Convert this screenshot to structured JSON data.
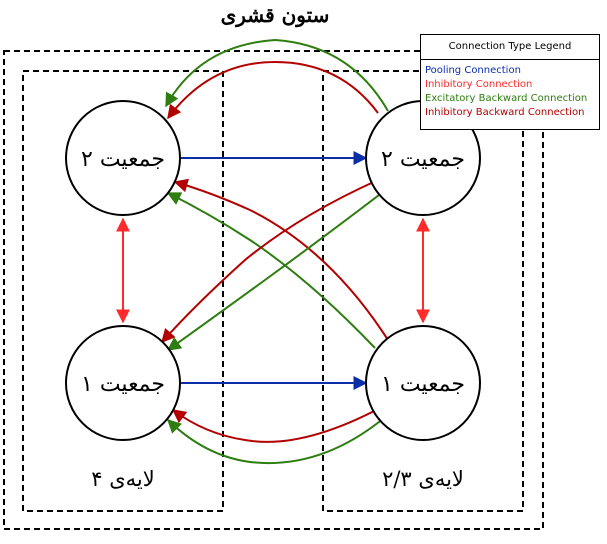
{
  "diagram": {
    "title": "ستون قشری",
    "layer4_label": "لایه‌ی ۴",
    "layer23_label": "لایه‌ی ۲/۳",
    "nodes": {
      "l4_pop2": "جمعیت ۲",
      "l4_pop1": "جمعیت ۱",
      "l23_pop2": "جمعیت ۲",
      "l23_pop1": "جمعیت ۱"
    }
  },
  "legend": {
    "title": "Connection Type Legend",
    "items": [
      {
        "label": "Pooling Connection",
        "color": "#0a2ea8"
      },
      {
        "label": "Inhibitory Connection",
        "color": "#ff2a2a"
      },
      {
        "label": "Excitatory Backward Connection",
        "color": "#2e7d0f"
      },
      {
        "label": "Inhibitory Backward Connection",
        "color": "#b30000"
      }
    ]
  },
  "colors": {
    "pooling": "#0a2ea8",
    "inhibitory": "#ff2a2a",
    "excitatory_backward": "#2e7d0f",
    "inhibitory_backward": "#b30000"
  }
}
